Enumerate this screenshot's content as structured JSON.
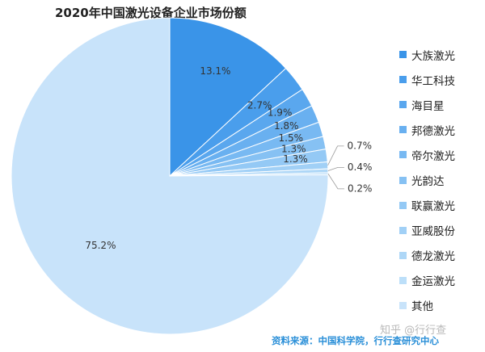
{
  "title": "2020年中国激光设备企业市场份额",
  "source_note": "资料来源：中国科学院，行行查研究中心",
  "watermark": "知乎 @行行查",
  "chart_data": {
    "type": "pie",
    "title": "2020年中国激光设备企业市场份额",
    "start_angle": "12 o'clock",
    "direction": "clockwise",
    "legend_position": "right",
    "slices": [
      {
        "label": "大族激光",
        "value": 13.1,
        "display": "13.1%",
        "color": "#3a94e8"
      },
      {
        "label": "华工科技",
        "value": 2.7,
        "display": "2.7%",
        "color": "#4a9eec"
      },
      {
        "label": "海目星",
        "value": 1.9,
        "display": "1.9%",
        "color": "#5aa7ee"
      },
      {
        "label": "邦德激光",
        "value": 1.8,
        "display": "1.8%",
        "color": "#69b0f0"
      },
      {
        "label": "帝尔激光",
        "value": 1.5,
        "display": "1.5%",
        "color": "#78b9f2"
      },
      {
        "label": "光韵达",
        "value": 1.3,
        "display": "1.3%",
        "color": "#86c1f3"
      },
      {
        "label": "联赢激光",
        "value": 1.3,
        "display": "1.3%",
        "color": "#94c9f5"
      },
      {
        "label": "亚威股份",
        "value": 0.7,
        "display": "0.7%",
        "color": "#a1d0f6"
      },
      {
        "label": "德龙激光",
        "value": 0.4,
        "display": "0.4%",
        "color": "#aed7f7"
      },
      {
        "label": "金运激光",
        "value": 0.2,
        "display": "0.2%",
        "color": "#bcdff9"
      },
      {
        "label": "其他",
        "value": 75.2,
        "display": "75.2%",
        "color": "#c8e3fa"
      }
    ]
  }
}
